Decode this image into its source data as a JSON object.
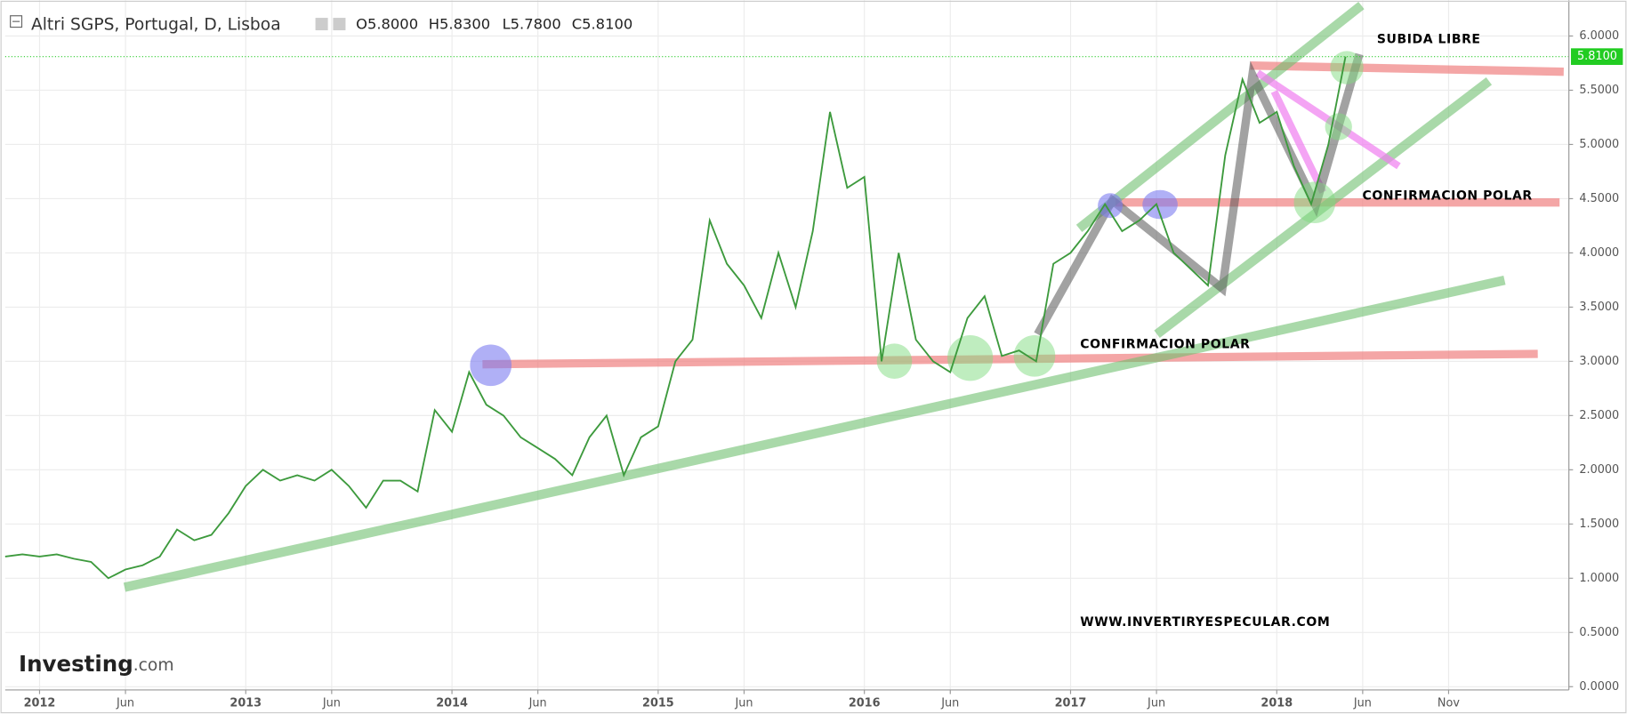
{
  "chart_data": {
    "type": "line",
    "title": "Altri SGPS, Portugal, D, Lisboa",
    "ohlc": [
      "O5.8000",
      "H5.8300",
      "L5.7800",
      "C5.8100"
    ],
    "annotations": [
      "SUBIDA LIBRE",
      "CONFIRMACION POLAR",
      "CONFIRMACION POLAR",
      "WWW.INVERTIRYESPECULAR.COM"
    ],
    "logo": [
      "Investing",
      ".com"
    ],
    "last_price": {
      "value": 5.81,
      "label": "5.8100"
    },
    "x": [
      "2011-11",
      "2011-12",
      "2012-01",
      "2012-02",
      "2012-03",
      "2012-04",
      "2012-05",
      "2012-06",
      "2012-07",
      "2012-08",
      "2012-09",
      "2012-10",
      "2012-11",
      "2012-12",
      "2013-01",
      "2013-02",
      "2013-03",
      "2013-04",
      "2013-05",
      "2013-06",
      "2013-07",
      "2013-08",
      "2013-09",
      "2013-10",
      "2013-11",
      "2013-12",
      "2014-01",
      "2014-02",
      "2014-03",
      "2014-04",
      "2014-05",
      "2014-06",
      "2014-07",
      "2014-08",
      "2014-09",
      "2014-10",
      "2014-11",
      "2014-12",
      "2015-01",
      "2015-02",
      "2015-03",
      "2015-04",
      "2015-05",
      "2015-06",
      "2015-07",
      "2015-08",
      "2015-09",
      "2015-10",
      "2015-11",
      "2015-12",
      "2016-01",
      "2016-02",
      "2016-03",
      "2016-04",
      "2016-05",
      "2016-06",
      "2016-07",
      "2016-08",
      "2016-09",
      "2016-10",
      "2016-11",
      "2016-12",
      "2017-01",
      "2017-02",
      "2017-03",
      "2017-04",
      "2017-05",
      "2017-06",
      "2017-07",
      "2017-08",
      "2017-09",
      "2017-10",
      "2017-11",
      "2017-12",
      "2018-01",
      "2018-02",
      "2018-03",
      "2018-04",
      "2018-05"
    ],
    "series": [
      {
        "name": "Altri SGPS",
        "color": "#3d9a3d",
        "values": [
          1.2,
          1.22,
          1.2,
          1.22,
          1.18,
          1.15,
          1.0,
          1.08,
          1.12,
          1.2,
          1.45,
          1.35,
          1.4,
          1.6,
          1.85,
          2.0,
          1.9,
          1.95,
          1.9,
          2.0,
          1.85,
          1.65,
          1.9,
          1.9,
          1.8,
          2.55,
          2.35,
          2.9,
          2.6,
          2.5,
          2.3,
          2.2,
          2.1,
          1.95,
          2.3,
          2.5,
          1.95,
          2.3,
          2.4,
          3.0,
          3.2,
          4.3,
          3.9,
          3.7,
          3.4,
          4.0,
          3.5,
          4.2,
          5.3,
          4.6,
          4.7,
          3.0,
          4.0,
          3.2,
          3.0,
          2.9,
          3.4,
          3.6,
          3.05,
          3.1,
          3.0,
          3.9,
          4.0,
          4.2,
          4.45,
          4.2,
          4.3,
          4.45,
          4.0,
          3.85,
          3.7,
          4.9,
          5.6,
          5.2,
          5.3,
          4.8,
          4.45,
          5.0,
          5.81
        ]
      }
    ],
    "xlim": [
      "2011-11",
      "2019-06"
    ],
    "xticks": [
      {
        "value": "2012-01",
        "label": "2012"
      },
      {
        "value": "2012-06",
        "label": "Jun"
      },
      {
        "value": "2013-01",
        "label": "2013"
      },
      {
        "value": "2013-06",
        "label": "Jun"
      },
      {
        "value": "2014-01",
        "label": "2014"
      },
      {
        "value": "2014-06",
        "label": "Jun"
      },
      {
        "value": "2015-01",
        "label": "2015"
      },
      {
        "value": "2015-06",
        "label": "Jun"
      },
      {
        "value": "2016-01",
        "label": "2016"
      },
      {
        "value": "2016-06",
        "label": "Jun"
      },
      {
        "value": "2017-01",
        "label": "2017"
      },
      {
        "value": "2017-06",
        "label": "Jun"
      },
      {
        "value": "2018-01",
        "label": "2018"
      },
      {
        "value": "2018-06",
        "label": "Jun"
      },
      {
        "value": "2018-11",
        "label": "Nov"
      }
    ],
    "ylim": [
      -0.03,
      6.33
    ],
    "yticks": [
      {
        "value": 0,
        "label": "0.0000"
      },
      {
        "value": 0.5,
        "label": "0.5000"
      },
      {
        "value": 1,
        "label": "1.0000"
      },
      {
        "value": 1.5,
        "label": "1.5000"
      },
      {
        "value": 2,
        "label": "2.0000"
      },
      {
        "value": 2.5,
        "label": "2.5000"
      },
      {
        "value": 3,
        "label": "3.0000"
      },
      {
        "value": 3.5,
        "label": "3.5000"
      },
      {
        "value": 4,
        "label": "4.0000"
      },
      {
        "value": 4.5,
        "label": "4.5000"
      },
      {
        "value": 5,
        "label": "5.0000"
      },
      {
        "value": 5.5,
        "label": "5.5000"
      },
      {
        "value": 6,
        "label": "6.0000"
      }
    ],
    "grid": true
  }
}
